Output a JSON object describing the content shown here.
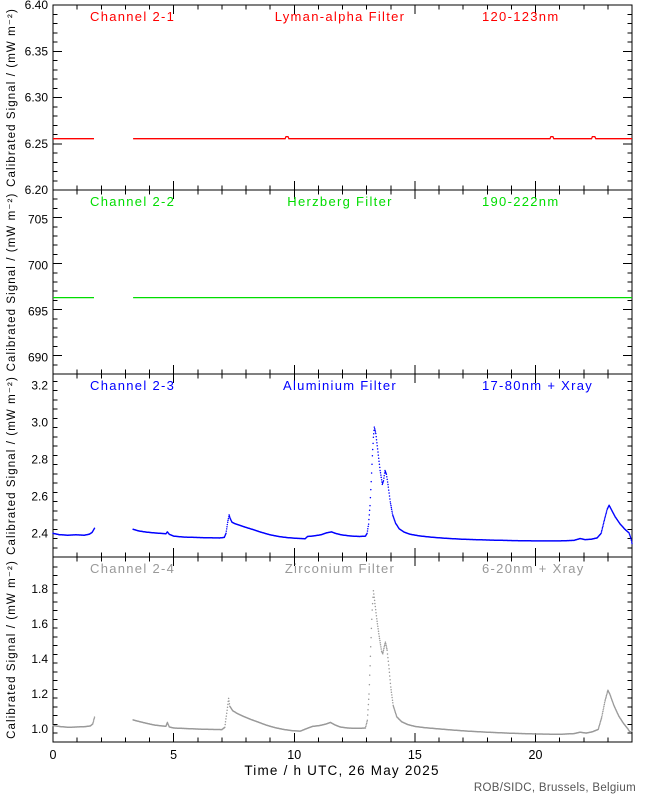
{
  "figure": {
    "xlabel": "Time / h UTC, 26 May 2025",
    "ylabel": "Calibrated Signal / (mW m⁻²)",
    "credit": "ROB/SIDC, Brussels, Belgium",
    "xlim": [
      0,
      24
    ],
    "x_tick_values": [
      0,
      5,
      10,
      15,
      20
    ],
    "x_tick_labels": [
      "0",
      "5",
      "10",
      "15",
      "20"
    ],
    "x_minor_step": 1,
    "colors": {
      "axis": "#000000",
      "credit": "#555555",
      "background": "#ffffff"
    },
    "data_gap_hours": [
      1.72,
      3.32
    ]
  },
  "chart_data": [
    {
      "type": "scatter",
      "title_left": "Channel 2-1",
      "title_center": "Lyman-alpha Filter",
      "title_right": "120-123nm",
      "color": "#ff0000",
      "style": "line",
      "ylim": [
        6.2,
        6.4
      ],
      "ytick_values": [
        6.2,
        6.25,
        6.3,
        6.35,
        6.4
      ],
      "ytick_labels": [
        "6.20",
        "6.25",
        "6.30",
        "6.35",
        "6.40"
      ],
      "y_minor_step": 0.01,
      "segments": [
        [
          [
            0,
            6.2555
          ],
          [
            1.7,
            6.2555
          ]
        ],
        [
          [
            3.32,
            6.2555
          ],
          [
            9.62,
            6.2555
          ],
          [
            9.66,
            6.2577
          ],
          [
            9.74,
            6.2577
          ],
          [
            9.78,
            6.2555
          ],
          [
            20.6,
            6.2555
          ],
          [
            20.64,
            6.2577
          ],
          [
            20.72,
            6.2577
          ],
          [
            20.76,
            6.2555
          ],
          [
            22.32,
            6.2555
          ],
          [
            22.36,
            6.2577
          ],
          [
            22.46,
            6.2577
          ],
          [
            22.5,
            6.2555
          ],
          [
            24,
            6.2555
          ]
        ]
      ]
    },
    {
      "type": "scatter",
      "title_left": "Channel 2-2",
      "title_center": "Herzberg Filter",
      "title_right": "190-222nm",
      "color": "#00dd00",
      "style": "line",
      "ylim": [
        688.2,
        708.2
      ],
      "ytick_values": [
        690,
        695,
        700,
        705
      ],
      "ytick_labels": [
        "690",
        "695",
        "700",
        "705"
      ],
      "y_minor_step": 1,
      "segments": [
        [
          [
            0,
            696.5
          ],
          [
            1.7,
            696.5
          ]
        ],
        [
          [
            3.32,
            696.5
          ],
          [
            24,
            696.5
          ]
        ]
      ]
    },
    {
      "type": "scatter",
      "title_left": "Channel 2-3",
      "title_center": "Aluminium Filter",
      "title_right": "17-80nm + Xray",
      "color": "#0000ff",
      "style": "dots",
      "ylim": [
        2.272,
        3.262
      ],
      "ytick_values": [
        2.4,
        2.6,
        2.8,
        3.0,
        3.2
      ],
      "ytick_labels": [
        "2.4",
        "2.6",
        "2.8",
        "3.0",
        "3.2"
      ],
      "y_minor_step": 0.05,
      "segments": [
        [
          [
            0,
            2.4
          ],
          [
            0.25,
            2.393
          ],
          [
            0.6,
            2.39
          ],
          [
            0.95,
            2.392
          ],
          [
            1.3,
            2.39
          ],
          [
            1.5,
            2.395
          ],
          [
            1.62,
            2.405
          ],
          [
            1.72,
            2.428
          ]
        ],
        [
          [
            3.32,
            2.422
          ],
          [
            3.55,
            2.413
          ],
          [
            3.85,
            2.407
          ],
          [
            4.15,
            2.403
          ],
          [
            4.45,
            2.4
          ],
          [
            4.68,
            2.398
          ],
          [
            4.74,
            2.408
          ],
          [
            4.82,
            2.395
          ],
          [
            5.0,
            2.385
          ],
          [
            5.4,
            2.38
          ],
          [
            5.9,
            2.378
          ],
          [
            6.4,
            2.376
          ],
          [
            6.9,
            2.375
          ],
          [
            7.1,
            2.378
          ],
          [
            7.17,
            2.4
          ],
          [
            7.24,
            2.46
          ],
          [
            7.3,
            2.5
          ],
          [
            7.34,
            2.482
          ],
          [
            7.42,
            2.46
          ],
          [
            7.55,
            2.452
          ],
          [
            7.75,
            2.443
          ],
          [
            8.0,
            2.432
          ],
          [
            8.3,
            2.42
          ],
          [
            8.65,
            2.405
          ],
          [
            9.0,
            2.392
          ],
          [
            9.35,
            2.383
          ],
          [
            9.7,
            2.377
          ],
          [
            10.1,
            2.373
          ],
          [
            10.45,
            2.371
          ],
          [
            10.55,
            2.383
          ],
          [
            10.8,
            2.386
          ],
          [
            11.1,
            2.392
          ],
          [
            11.35,
            2.403
          ],
          [
            11.55,
            2.408
          ],
          [
            11.7,
            2.4
          ],
          [
            11.95,
            2.392
          ],
          [
            12.3,
            2.386
          ],
          [
            12.7,
            2.383
          ],
          [
            12.95,
            2.385
          ],
          [
            13.02,
            2.4
          ],
          [
            13.08,
            2.45
          ],
          [
            13.14,
            2.55
          ],
          [
            13.19,
            2.68
          ],
          [
            13.24,
            2.82
          ],
          [
            13.28,
            2.92
          ],
          [
            13.32,
            2.975
          ],
          [
            13.38,
            2.94
          ],
          [
            13.47,
            2.84
          ],
          [
            13.56,
            2.74
          ],
          [
            13.65,
            2.665
          ],
          [
            13.7,
            2.685
          ],
          [
            13.76,
            2.74
          ],
          [
            13.82,
            2.72
          ],
          [
            13.9,
            2.65
          ],
          [
            13.98,
            2.57
          ],
          [
            14.08,
            2.5
          ],
          [
            14.2,
            2.455
          ],
          [
            14.35,
            2.425
          ],
          [
            14.55,
            2.407
          ],
          [
            14.8,
            2.395
          ],
          [
            15.2,
            2.386
          ],
          [
            15.7,
            2.379
          ],
          [
            16.3,
            2.373
          ],
          [
            17.0,
            2.368
          ],
          [
            18.0,
            2.364
          ],
          [
            19.0,
            2.361
          ],
          [
            20.0,
            2.359
          ],
          [
            21.0,
            2.359
          ],
          [
            21.6,
            2.362
          ],
          [
            21.85,
            2.372
          ],
          [
            22.05,
            2.366
          ],
          [
            22.3,
            2.368
          ],
          [
            22.55,
            2.375
          ],
          [
            22.72,
            2.4
          ],
          [
            22.85,
            2.47
          ],
          [
            22.97,
            2.53
          ],
          [
            23.05,
            2.552
          ],
          [
            23.12,
            2.535
          ],
          [
            23.3,
            2.49
          ],
          [
            23.5,
            2.452
          ],
          [
            23.7,
            2.423
          ],
          [
            23.88,
            2.402
          ],
          [
            23.96,
            2.37
          ],
          [
            24,
            2.345
          ]
        ]
      ]
    },
    {
      "type": "scatter",
      "title_left": "Channel 2-4",
      "title_center": "Zirconium Filter",
      "title_right": "6-20nm + Xray",
      "color": "#999999",
      "style": "dots",
      "ylim": [
        0.926,
        1.983
      ],
      "ytick_values": [
        1.0,
        1.2,
        1.4,
        1.6,
        1.8
      ],
      "ytick_labels": [
        "1.0",
        "1.2",
        "1.4",
        "1.6",
        "1.8"
      ],
      "y_minor_step": 0.05,
      "segments": [
        [
          [
            0,
            1.02
          ],
          [
            0.3,
            1.014
          ],
          [
            0.65,
            1.01
          ],
          [
            1.0,
            1.012
          ],
          [
            1.35,
            1.014
          ],
          [
            1.55,
            1.018
          ],
          [
            1.65,
            1.03
          ],
          [
            1.72,
            1.068
          ]
        ],
        [
          [
            3.32,
            1.052
          ],
          [
            3.6,
            1.042
          ],
          [
            3.9,
            1.032
          ],
          [
            4.2,
            1.023
          ],
          [
            4.5,
            1.018
          ],
          [
            4.68,
            1.016
          ],
          [
            4.74,
            1.038
          ],
          [
            4.82,
            1.012
          ],
          [
            5.0,
            1.006
          ],
          [
            5.5,
            1.003
          ],
          [
            6.0,
            1.0
          ],
          [
            6.5,
            0.998
          ],
          [
            7.0,
            0.997
          ],
          [
            7.12,
            1.01
          ],
          [
            7.2,
            1.09
          ],
          [
            7.28,
            1.175
          ],
          [
            7.33,
            1.13
          ],
          [
            7.45,
            1.105
          ],
          [
            7.65,
            1.088
          ],
          [
            7.9,
            1.072
          ],
          [
            8.2,
            1.055
          ],
          [
            8.5,
            1.04
          ],
          [
            8.85,
            1.022
          ],
          [
            9.2,
            1.008
          ],
          [
            9.55,
            0.998
          ],
          [
            9.9,
            0.991
          ],
          [
            10.25,
            0.988
          ],
          [
            10.5,
            1.002
          ],
          [
            10.75,
            1.015
          ],
          [
            11.05,
            1.02
          ],
          [
            11.3,
            1.028
          ],
          [
            11.5,
            1.038
          ],
          [
            11.68,
            1.024
          ],
          [
            11.9,
            1.012
          ],
          [
            12.2,
            1.006
          ],
          [
            12.6,
            1.004
          ],
          [
            12.95,
            1.006
          ],
          [
            13.03,
            1.05
          ],
          [
            13.1,
            1.2
          ],
          [
            13.17,
            1.47
          ],
          [
            13.23,
            1.68
          ],
          [
            13.28,
            1.79
          ],
          [
            13.33,
            1.735
          ],
          [
            13.42,
            1.63
          ],
          [
            13.52,
            1.53
          ],
          [
            13.62,
            1.445
          ],
          [
            13.67,
            1.43
          ],
          [
            13.73,
            1.47
          ],
          [
            13.78,
            1.497
          ],
          [
            13.85,
            1.45
          ],
          [
            13.93,
            1.345
          ],
          [
            14.0,
            1.24
          ],
          [
            14.1,
            1.135
          ],
          [
            14.25,
            1.07
          ],
          [
            14.45,
            1.042
          ],
          [
            14.7,
            1.026
          ],
          [
            15.0,
            1.015
          ],
          [
            15.4,
            1.008
          ],
          [
            15.9,
            1.002
          ],
          [
            16.5,
            0.995
          ],
          [
            17.2,
            0.988
          ],
          [
            18.0,
            0.982
          ],
          [
            19.0,
            0.976
          ],
          [
            20.0,
            0.972
          ],
          [
            21.0,
            0.97
          ],
          [
            21.6,
            0.974
          ],
          [
            21.85,
            0.982
          ],
          [
            22.1,
            0.977
          ],
          [
            22.35,
            0.984
          ],
          [
            22.6,
            0.998
          ],
          [
            22.75,
            1.07
          ],
          [
            22.88,
            1.16
          ],
          [
            23.0,
            1.222
          ],
          [
            23.08,
            1.2
          ],
          [
            23.25,
            1.135
          ],
          [
            23.45,
            1.075
          ],
          [
            23.65,
            1.032
          ],
          [
            23.82,
            1.003
          ],
          [
            23.92,
            0.982
          ],
          [
            24,
            0.988
          ]
        ]
      ]
    }
  ]
}
